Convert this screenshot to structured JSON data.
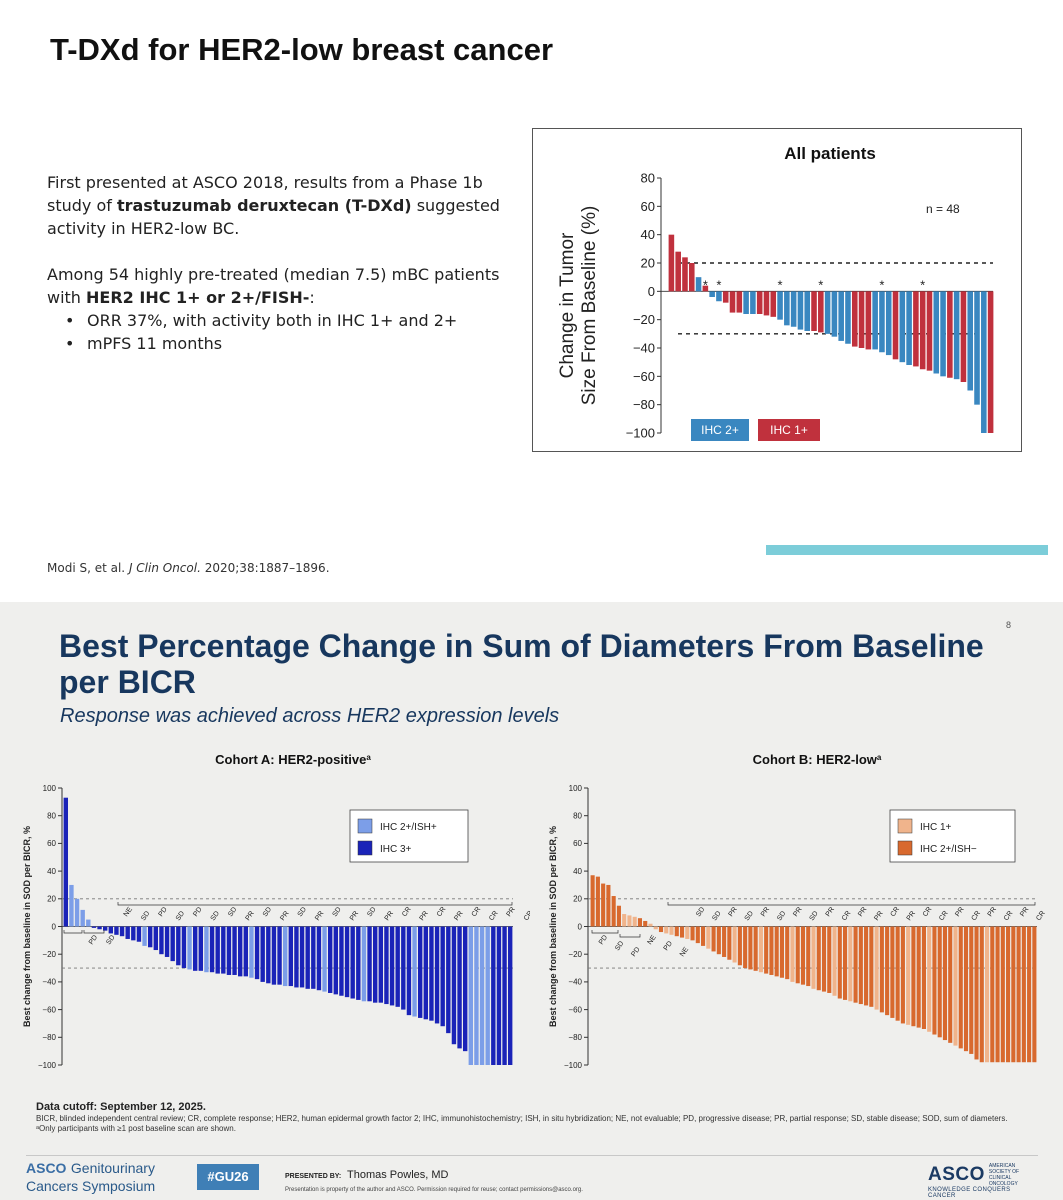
{
  "top": {
    "title": "T-DXd for HER2-low breast cancer",
    "para1_part1": "First presented at ASCO 2018, results from a Phase 1b study of ",
    "para1_bold": "trastuzumab deruxtecan (T-DXd)",
    "para1_part2": " suggested activity in HER2-low BC.",
    "para2_part1": "Among 54 highly pre-treated (median 7.5) mBC patients with ",
    "para2_bold": "HER2 IHC 1+ or 2+/FISH-",
    "para2_part2": ":",
    "bullets": [
      "ORR 37%, with activity both in IHC 1+ and 2+",
      "mPFS 11 months"
    ],
    "citation_prefix": "Modi S, et al. ",
    "citation_journal": "J Clin Oncol.",
    "citation_suffix": " 2020;38:1887–1896."
  },
  "bottom": {
    "title": "Best Percentage Change in Sum of Diameters From Baseline per BICR",
    "subtitle": "Response was achieved across HER2 expression levels",
    "page_number": "8",
    "data_cutoff": "Data cutoff: September 12, 2025.",
    "footnote1": "BICR, blinded independent central review; CR, complete response; HER2, human epidermal growth factor 2; IHC, immunohistochemistry; ISH, in situ hybridization; NE, not evaluable; PD, progressive disease; PR, partial response; SD, stable disease; SOD, sum of diameters.",
    "footnote2": "ᵃOnly participants with ≥1 post baseline scan are shown.",
    "footer_logo_asco": "ASCO",
    "footer_logo_line1": "Genitourinary",
    "footer_logo_line2": "Cancers Symposium",
    "hashtag": "#GU26",
    "presented_by_label": "PRESENTED BY:",
    "presenter": "Thomas Powles, MD",
    "permission": "Presentation is property of the author and ASCO. Permission required for reuse; contact permissions@asco.org.",
    "asco_right": "ASCO",
    "asco_right_society_1": "AMERICAN SOCIETY OF",
    "asco_right_society_2": "CLINICAL ONCOLOGY",
    "asco_right_tagline": "KNOWLEDGE CONQUERS CANCER"
  },
  "colors": {
    "ihc2_top": "#3a87c0",
    "ihc1_top": "#c0313d",
    "cohortA_light": "#7c9ee8",
    "cohortA_dark": "#1a23b8",
    "cohortB_light": "#f0b48c",
    "cohortB_dark": "#d8692e",
    "bottom_title": "#17375e"
  },
  "chart_data": [
    {
      "type": "bar",
      "title": "All patients",
      "ylabel": "Change in Tumor Size From Baseline (%)",
      "ylim": [
        -100,
        80
      ],
      "yticks": [
        80,
        60,
        40,
        20,
        0,
        -20,
        -40,
        -60,
        -80,
        -100
      ],
      "reference_lines": [
        20,
        -30
      ],
      "annotation": "n = 48",
      "legend": [
        {
          "label": "IHC 2+",
          "color": "#3a87c0"
        },
        {
          "label": "IHC 1+",
          "color": "#c0313d"
        }
      ],
      "values": [
        40,
        28,
        24,
        20,
        10,
        4,
        -4,
        -7,
        -8,
        -15,
        -15,
        -16,
        -16,
        -16,
        -17,
        -18,
        -20,
        -24,
        -25,
        -27,
        -28,
        -28,
        -29,
        -30,
        -32,
        -35,
        -37,
        -39,
        -40,
        -41,
        -41,
        -43,
        -45,
        -48,
        -50,
        -52,
        -53,
        -55,
        -56,
        -58,
        -60,
        -61,
        -62,
        -64,
        -70,
        -80,
        -100,
        -100
      ],
      "groups": [
        "IHC 1+",
        "IHC 1+",
        "IHC 1+",
        "IHC 1+",
        "IHC 2+",
        "IHC 1+",
        "IHC 2+",
        "IHC 2+",
        "IHC 1+",
        "IHC 1+",
        "IHC 1+",
        "IHC 2+",
        "IHC 2+",
        "IHC 1+",
        "IHC 1+",
        "IHC 1+",
        "IHC 2+",
        "IHC 2+",
        "IHC 2+",
        "IHC 2+",
        "IHC 2+",
        "IHC 1+",
        "IHC 1+",
        "IHC 2+",
        "IHC 2+",
        "IHC 2+",
        "IHC 2+",
        "IHC 1+",
        "IHC 1+",
        "IHC 1+",
        "IHC 2+",
        "IHC 2+",
        "IHC 2+",
        "IHC 1+",
        "IHC 2+",
        "IHC 2+",
        "IHC 1+",
        "IHC 1+",
        "IHC 1+",
        "IHC 2+",
        "IHC 2+",
        "IHC 1+",
        "IHC 2+",
        "IHC 1+",
        "IHC 2+",
        "IHC 2+",
        "IHC 2+",
        "IHC 1+"
      ],
      "asterisk_bars": [
        5,
        7,
        16,
        22,
        31,
        37
      ]
    },
    {
      "type": "bar",
      "title": "Cohort A: HER2-positive",
      "title_sup": "a",
      "ylabel": "Best change from baseline in SOD per BICR, %",
      "ylim": [
        -100,
        100
      ],
      "yticks": [
        100,
        80,
        60,
        40,
        20,
        0,
        -20,
        -40,
        -60,
        -80,
        -100
      ],
      "reference_lines": [
        20,
        -30
      ],
      "legend": [
        {
          "label": "IHC 2+/ISH+",
          "color": "#7c9ee8"
        },
        {
          "label": "IHC 3+",
          "color": "#1a23b8"
        }
      ],
      "values": [
        93,
        30,
        20,
        12,
        5,
        -1,
        -2,
        -3,
        -5,
        -6,
        -7,
        -9,
        -10,
        -11,
        -14,
        -15,
        -17,
        -20,
        -22,
        -25,
        -28,
        -30,
        -31,
        -32,
        -32,
        -33,
        -33,
        -34,
        -34,
        -35,
        -35,
        -36,
        -36,
        -37,
        -38,
        -40,
        -41,
        -42,
        -42,
        -43,
        -43,
        -44,
        -44,
        -45,
        -45,
        -46,
        -47,
        -48,
        -49,
        -50,
        -51,
        -52,
        -53,
        -54,
        -54,
        -55,
        -55,
        -56,
        -57,
        -58,
        -60,
        -64,
        -65,
        -66,
        -67,
        -68,
        -70,
        -72,
        -77,
        -85,
        -88,
        -90,
        -100,
        -100,
        -100,
        -100,
        -100,
        -100,
        -100,
        -100
      ],
      "groups": [
        "IHC 3+",
        "IHC 2+/ISH+",
        "IHC 2+/ISH+",
        "IHC 2+/ISH+",
        "IHC 2+/ISH+",
        "IHC 3+",
        "IHC 3+",
        "IHC 3+",
        "IHC 3+",
        "IHC 3+",
        "IHC 3+",
        "IHC 3+",
        "IHC 3+",
        "IHC 3+",
        "IHC 2+/ISH+",
        "IHC 3+",
        "IHC 3+",
        "IHC 3+",
        "IHC 3+",
        "IHC 3+",
        "IHC 3+",
        "IHC 3+",
        "IHC 2+/ISH+",
        "IHC 3+",
        "IHC 3+",
        "IHC 2+/ISH+",
        "IHC 3+",
        "IHC 3+",
        "IHC 3+",
        "IHC 3+",
        "IHC 3+",
        "IHC 3+",
        "IHC 3+",
        "IHC 2+/ISH+",
        "IHC 3+",
        "IHC 3+",
        "IHC 3+",
        "IHC 3+",
        "IHC 3+",
        "IHC 2+/ISH+",
        "IHC 3+",
        "IHC 3+",
        "IHC 3+",
        "IHC 3+",
        "IHC 3+",
        "IHC 3+",
        "IHC 2+/ISH+",
        "IHC 3+",
        "IHC 3+",
        "IHC 3+",
        "IHC 3+",
        "IHC 3+",
        "IHC 3+",
        "IHC 2+/ISH+",
        "IHC 3+",
        "IHC 3+",
        "IHC 3+",
        "IHC 3+",
        "IHC 3+",
        "IHC 3+",
        "IHC 3+",
        "IHC 3+",
        "IHC 2+/ISH+",
        "IHC 3+",
        "IHC 3+",
        "IHC 3+",
        "IHC 3+",
        "IHC 3+",
        "IHC 3+",
        "IHC 3+",
        "IHC 3+",
        "IHC 3+",
        "IHC 2+/ISH+",
        "IHC 2+/ISH+",
        "IHC 2+/ISH+",
        "IHC 2+/ISH+",
        "IHC 3+",
        "IHC 3+",
        "IHC 3+",
        "IHC 3+"
      ],
      "response_labels": [
        "PD",
        "SD",
        "NE",
        "SD",
        "PD",
        "SD",
        "PD",
        "SD",
        "SD",
        "PR",
        "SD",
        "PR",
        "SD",
        "PR",
        "SD",
        "PR",
        "SD",
        "PR",
        "CR",
        "PR",
        "CR",
        "PR",
        "CR",
        "CR",
        "PR",
        "CR"
      ]
    },
    {
      "type": "bar",
      "title": "Cohort B: HER2-low",
      "title_sup": "a",
      "ylabel": "Best change from baseline in SOD per BICR, %",
      "ylim": [
        -100,
        100
      ],
      "yticks": [
        100,
        80,
        60,
        40,
        20,
        0,
        -20,
        -40,
        -60,
        -80,
        -100
      ],
      "reference_lines": [
        20,
        -30
      ],
      "legend": [
        {
          "label": "IHC 1+",
          "color": "#f0b48c"
        },
        {
          "label": "IHC 2+/ISH−",
          "color": "#d8692e"
        }
      ],
      "values": [
        37,
        36,
        31,
        30,
        22,
        15,
        9,
        8,
        7,
        6,
        4,
        2,
        -2,
        -4,
        -5,
        -6,
        -7,
        -8,
        -9,
        -10,
        -12,
        -14,
        -16,
        -18,
        -20,
        -22,
        -24,
        -26,
        -28,
        -30,
        -31,
        -32,
        -33,
        -34,
        -35,
        -36,
        -37,
        -38,
        -40,
        -41,
        -42,
        -43,
        -45,
        -46,
        -47,
        -48,
        -50,
        -52,
        -53,
        -54,
        -55,
        -56,
        -57,
        -58,
        -60,
        -62,
        -64,
        -66,
        -68,
        -70,
        -71,
        -72,
        -73,
        -74,
        -76,
        -78,
        -80,
        -82,
        -84,
        -86,
        -88,
        -90,
        -92,
        -96,
        -98,
        -98,
        -98,
        -98,
        -98,
        -98,
        -98,
        -98,
        -98,
        -98,
        -98
      ],
      "groups": [
        "IHC 2+/ISH−",
        "IHC 2+/ISH−",
        "IHC 2+/ISH−",
        "IHC 2+/ISH−",
        "IHC 2+/ISH−",
        "IHC 2+/ISH−",
        "IHC 1+",
        "IHC 1+",
        "IHC 1+",
        "IHC 2+/ISH−",
        "IHC 2+/ISH−",
        "IHC 1+",
        "IHC 1+",
        "IHC 2+/ISH−",
        "IHC 1+",
        "IHC 1+",
        "IHC 2+/ISH−",
        "IHC 2+/ISH−",
        "IHC 1+",
        "IHC 2+/ISH−",
        "IHC 2+/ISH−",
        "IHC 2+/ISH−",
        "IHC 1+",
        "IHC 2+/ISH−",
        "IHC 2+/ISH−",
        "IHC 2+/ISH−",
        "IHC 2+/ISH−",
        "IHC 1+",
        "IHC 2+/ISH−",
        "IHC 2+/ISH−",
        "IHC 2+/ISH−",
        "IHC 2+/ISH−",
        "IHC 1+",
        "IHC 2+/ISH−",
        "IHC 2+/ISH−",
        "IHC 2+/ISH−",
        "IHC 2+/ISH−",
        "IHC 2+/ISH−",
        "IHC 1+",
        "IHC 2+/ISH−",
        "IHC 2+/ISH−",
        "IHC 2+/ISH−",
        "IHC 1+",
        "IHC 2+/ISH−",
        "IHC 2+/ISH−",
        "IHC 2+/ISH−",
        "IHC 1+",
        "IHC 2+/ISH−",
        "IHC 2+/ISH−",
        "IHC 1+",
        "IHC 2+/ISH−",
        "IHC 2+/ISH−",
        "IHC 2+/ISH−",
        "IHC 2+/ISH−",
        "IHC 1+",
        "IHC 2+/ISH−",
        "IHC 2+/ISH−",
        "IHC 2+/ISH−",
        "IHC 2+/ISH−",
        "IHC 2+/ISH−",
        "IHC 1+",
        "IHC 2+/ISH−",
        "IHC 2+/ISH−",
        "IHC 2+/ISH−",
        "IHC 1+",
        "IHC 2+/ISH−",
        "IHC 2+/ISH−",
        "IHC 2+/ISH−",
        "IHC 2+/ISH−",
        "IHC 1+",
        "IHC 2+/ISH−",
        "IHC 2+/ISH−",
        "IHC 2+/ISH−",
        "IHC 2+/ISH−",
        "IHC 2+/ISH−",
        "IHC 1+",
        "IHC 2+/ISH−",
        "IHC 2+/ISH−",
        "IHC 2+/ISH−",
        "IHC 2+/ISH−",
        "IHC 2+/ISH−",
        "IHC 2+/ISH−",
        "IHC 2+/ISH−",
        "IHC 2+/ISH−",
        "IHC 2+/ISH−"
      ],
      "response_labels": [
        "PD",
        "SD",
        "PD",
        "NE",
        "PD",
        "NE",
        "SD",
        "SD",
        "PR",
        "SD",
        "PR",
        "SD",
        "PR",
        "SD",
        "PR",
        "CR",
        "PR",
        "PR",
        "CR",
        "PR",
        "CR",
        "CR",
        "PR",
        "CR",
        "PR",
        "CR",
        "PR",
        "CR"
      ]
    }
  ]
}
